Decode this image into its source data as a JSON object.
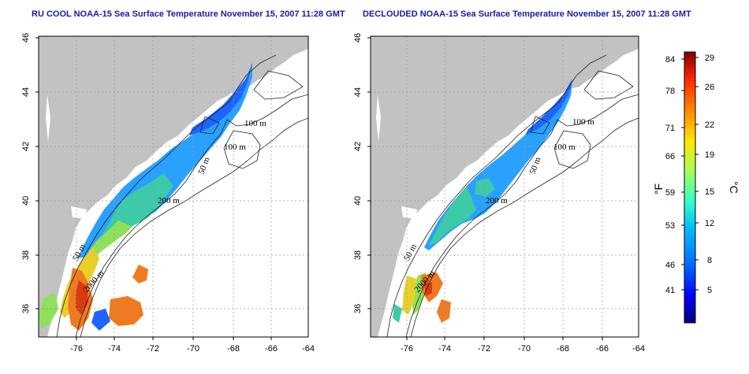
{
  "panels": [
    {
      "title": "RU COOL NOAA-15 Sea Surface Temperature November 15, 2007 11:28 GMT",
      "x_ticks": [
        "-76",
        "-74",
        "-72",
        "-70",
        "-68",
        "-66",
        "-64"
      ],
      "y_ticks": [
        "46",
        "44",
        "42",
        "40",
        "38",
        "36"
      ],
      "contour_labels": [
        "100 m",
        "100 m",
        "50 m",
        "200 m",
        "50 m",
        "2000 m"
      ]
    },
    {
      "title": "DECLOUDED NOAA-15 Sea Surface Temperature November 15, 2007 11:28 GMT",
      "x_ticks": [
        "-76",
        "-74",
        "-72",
        "-70",
        "-68",
        "-66",
        "-64"
      ],
      "y_ticks": [
        "46",
        "44",
        "42",
        "40",
        "38",
        "36"
      ],
      "contour_labels": [
        "100 m",
        "100 m",
        "50 m",
        "200 m",
        "50 m",
        "2000 m"
      ]
    }
  ],
  "colorbar": {
    "f_unit": "°F",
    "c_unit": "°C",
    "f_ticks": [
      "84",
      "78",
      "71",
      "66",
      "59",
      "53",
      "46",
      "41"
    ],
    "c_ticks": [
      "29",
      "26",
      "22",
      "19",
      "15",
      "12",
      "8",
      "5"
    ],
    "colors": [
      "#00007f",
      "#0000ff",
      "#0070ff",
      "#00b8ff",
      "#36ffc9",
      "#a3ff5a",
      "#ffe600",
      "#ff8c00",
      "#ff2600",
      "#800000"
    ]
  },
  "map_colors": {
    "land": "#c2c2c2",
    "water": "#ffffff",
    "cold": "#1e64ff",
    "cool": "#2aa0ff",
    "mild": "#3ccaa8",
    "warm": "#8fe05a",
    "warmer": "#e8d02a",
    "hot": "#f07a20",
    "hottest": "#d83a12"
  }
}
